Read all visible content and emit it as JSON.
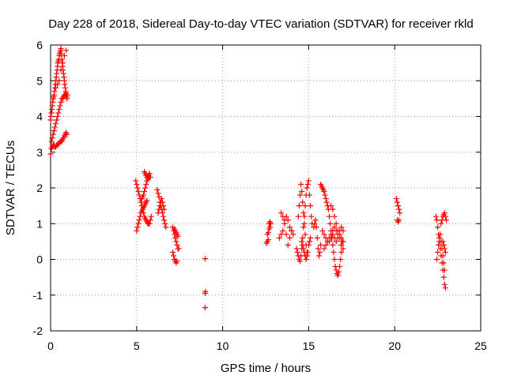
{
  "chart_data": {
    "type": "scatter",
    "title": "Day 228 of 2018, Sidereal Day-to-day VTEC variation (SDTVAR) for receiver rkld",
    "xlabel": "GPS time / hours",
    "ylabel": "SDTVAR / TECUs",
    "xlim": [
      0,
      25
    ],
    "ylim": [
      -2,
      6
    ],
    "xticks": [
      0,
      5,
      10,
      15,
      20,
      25
    ],
    "yticks": [
      -2,
      -1,
      0,
      1,
      2,
      3,
      4,
      5,
      6
    ],
    "grid": true,
    "marker": "+",
    "color": "#ff0000",
    "series": [
      {
        "name": "SDTVAR",
        "x": [
          0.0,
          0.02,
          0.05,
          0.08,
          0.1,
          0.12,
          0.15,
          0.18,
          0.2,
          0.22,
          0.25,
          0.28,
          0.3,
          0.33,
          0.35,
          0.38,
          0.4,
          0.42,
          0.45,
          0.48,
          0.5,
          0.52,
          0.55,
          0.58,
          0.6,
          0.62,
          0.65,
          0.68,
          0.7,
          0.72,
          0.75,
          0.78,
          0.8,
          0.82,
          0.85,
          0.88,
          0.9,
          0.92,
          0.95,
          0.97,
          0.05,
          0.1,
          0.15,
          0.2,
          0.25,
          0.3,
          0.35,
          0.4,
          0.45,
          0.5,
          0.55,
          0.6,
          0.65,
          0.7,
          0.75,
          0.8,
          0.85,
          0.9,
          0.0,
          0.05,
          0.1,
          0.15,
          0.2,
          0.25,
          0.3,
          0.35,
          0.4,
          0.45,
          0.5,
          0.55,
          0.6,
          0.65,
          0.7,
          0.75,
          0.8,
          0.85,
          0.9,
          0.95,
          0.3,
          0.4,
          0.5,
          0.6,
          0.7,
          0.8,
          0.9,
          4.95,
          5.0,
          5.05,
          5.1,
          5.15,
          5.2,
          5.25,
          5.3,
          5.35,
          5.4,
          5.45,
          5.5,
          5.55,
          5.6,
          5.65,
          5.7,
          5.75,
          5.8,
          5.85,
          5.0,
          5.05,
          5.1,
          5.15,
          5.2,
          5.25,
          5.3,
          5.35,
          5.4,
          5.45,
          5.5,
          5.55,
          5.6,
          5.3,
          5.35,
          5.4,
          5.45,
          5.5,
          5.55,
          5.6,
          5.65,
          5.7,
          5.75,
          5.45,
          5.5,
          5.55,
          5.6,
          5.65,
          5.7,
          5.75,
          5.8,
          6.2,
          6.25,
          6.3,
          6.35,
          6.4,
          6.45,
          6.5,
          6.55,
          6.6,
          6.65,
          6.7,
          6.25,
          6.3,
          6.35,
          6.4,
          6.45,
          6.5,
          6.55,
          6.6,
          7.1,
          7.15,
          7.2,
          7.25,
          7.3,
          7.35,
          7.4,
          7.45,
          7.1,
          7.15,
          7.2,
          7.25,
          7.3,
          7.35,
          7.2,
          7.25,
          7.3,
          7.35,
          7.4,
          8.98,
          8.98,
          8.98,
          9.0,
          12.55,
          12.6,
          12.65,
          12.7,
          12.75,
          12.8,
          12.6,
          12.65,
          12.7,
          12.75,
          13.3,
          13.4,
          13.5,
          13.6,
          13.7,
          13.8,
          13.9,
          14.0,
          14.1,
          13.4,
          13.5,
          13.6,
          13.7,
          13.8,
          13.9,
          14.0,
          14.3,
          14.35,
          14.4,
          14.45,
          14.5,
          14.55,
          14.6,
          14.65,
          14.7,
          14.75,
          14.8,
          14.85,
          14.9,
          14.95,
          15.0,
          15.05,
          15.1,
          15.15,
          15.2,
          14.4,
          14.45,
          14.5,
          14.55,
          14.6,
          14.65,
          14.7,
          14.75,
          14.8,
          14.85,
          14.9,
          14.6,
          14.65,
          14.7,
          14.75,
          14.8,
          14.85,
          14.9,
          14.95,
          15.0,
          15.05,
          15.1,
          15.3,
          15.35,
          15.4,
          15.45,
          15.5,
          15.55,
          15.6,
          15.65,
          15.7,
          15.7,
          15.75,
          15.8,
          15.85,
          15.9,
          15.95,
          16.0,
          16.05,
          16.1,
          16.15,
          16.2,
          16.25,
          16.3,
          16.35,
          16.4,
          16.45,
          16.5,
          16.55,
          16.6,
          16.65,
          16.7,
          16.75,
          16.8,
          16.85,
          16.9,
          16.95,
          17.0,
          15.8,
          15.9,
          16.0,
          16.1,
          16.2,
          16.3,
          16.4,
          16.5,
          16.6,
          16.7,
          16.8,
          16.9,
          17.0,
          15.9,
          16.0,
          16.1,
          16.2,
          16.3,
          16.4,
          16.5,
          16.6,
          16.7,
          16.8,
          16.9,
          16.3,
          16.4,
          16.5,
          16.6,
          16.7,
          16.8,
          16.9,
          17.0,
          20.1,
          20.15,
          20.2,
          20.25,
          20.3,
          20.15,
          20.2,
          20.25,
          22.4,
          22.45,
          22.5,
          22.55,
          22.6,
          22.65,
          22.7,
          22.75,
          22.8,
          22.85,
          22.9,
          22.95,
          22.45,
          22.5,
          22.55,
          22.6,
          22.65,
          22.7,
          22.75,
          22.8,
          22.85,
          22.9,
          22.7,
          22.75,
          22.8,
          22.85,
          22.9,
          22.95,
          23.0,
          22.8,
          22.85,
          22.9,
          22.95
        ],
        "y": [
          3.9,
          4.0,
          4.1,
          4.2,
          4.3,
          4.4,
          4.5,
          4.55,
          4.6,
          4.7,
          4.8,
          4.9,
          5.0,
          5.1,
          5.2,
          5.3,
          5.4,
          5.5,
          5.55,
          5.6,
          5.7,
          5.75,
          5.8,
          5.85,
          5.9,
          5.75,
          5.6,
          5.5,
          5.4,
          5.3,
          5.2,
          5.1,
          5.0,
          4.9,
          4.8,
          4.7,
          4.6,
          4.55,
          4.5,
          4.6,
          3.3,
          3.4,
          3.5,
          3.6,
          3.7,
          3.8,
          3.9,
          4.0,
          4.1,
          4.2,
          4.3,
          4.4,
          4.5,
          4.5,
          4.55,
          4.6,
          4.6,
          4.65,
          2.95,
          3.1,
          3.15,
          3.2,
          3.2,
          3.15,
          3.15,
          3.2,
          3.2,
          3.25,
          3.25,
          3.3,
          3.3,
          3.3,
          3.35,
          3.4,
          3.45,
          3.5,
          3.55,
          3.5,
          4.8,
          4.9,
          5.0,
          5.3,
          5.5,
          5.7,
          5.85,
          2.2,
          2.1,
          2.0,
          1.9,
          1.8,
          1.7,
          1.6,
          1.5,
          1.4,
          1.3,
          1.2,
          1.15,
          1.1,
          1.05,
          1.0,
          1.0,
          1.0,
          1.1,
          1.2,
          0.8,
          0.9,
          1.0,
          1.1,
          1.2,
          1.3,
          1.35,
          1.4,
          1.45,
          1.5,
          1.55,
          1.6,
          1.65,
          1.7,
          1.75,
          1.8,
          1.9,
          2.0,
          2.1,
          2.2,
          2.3,
          2.35,
          2.4,
          2.45,
          2.4,
          2.35,
          2.3,
          2.25,
          2.3,
          2.3,
          2.3,
          1.95,
          1.85,
          1.75,
          1.6,
          1.5,
          1.4,
          1.3,
          1.2,
          1.1,
          1.0,
          0.9,
          1.3,
          1.4,
          1.5,
          1.6,
          1.7,
          1.6,
          1.5,
          1.4,
          0.9,
          0.8,
          0.7,
          0.6,
          0.5,
          0.4,
          0.3,
          0.3,
          0.2,
          0.1,
          0.0,
          -0.05,
          -0.1,
          -0.05,
          0.85,
          0.8,
          0.75,
          0.7,
          0.65,
          0.02,
          -0.95,
          -1.35,
          -0.9,
          0.45,
          0.5,
          0.55,
          1.0,
          1.05,
          1.0,
          0.7,
          0.75,
          0.85,
          0.9,
          0.6,
          0.7,
          0.8,
          1.0,
          1.2,
          1.1,
          0.9,
          0.8,
          0.7,
          1.3,
          1.2,
          1.1,
          0.7,
          0.4,
          0.6,
          0.8,
          0.3,
          0.2,
          0.1,
          0.0,
          -0.05,
          0.1,
          0.3,
          0.6,
          0.9,
          1.2,
          1.5,
          1.8,
          2.0,
          2.1,
          2.2,
          1.8,
          1.5,
          1.2,
          1.0,
          1.2,
          1.5,
          1.8,
          2.1,
          1.9,
          1.6,
          1.3,
          1.0,
          0.7,
          0.4,
          0.2,
          0.5,
          0.4,
          0.3,
          0.2,
          0.1,
          0.0,
          0.1,
          0.2,
          0.4,
          0.5,
          0.6,
          0.9,
          1.0,
          1.1,
          0.9,
          0.6,
          0.3,
          0.1,
          0.2,
          0.4,
          2.1,
          2.05,
          2.0,
          1.95,
          1.9,
          1.8,
          1.7,
          1.6,
          1.5,
          1.4,
          1.2,
          1.0,
          0.8,
          0.6,
          0.4,
          0.2,
          0.0,
          -0.2,
          -0.3,
          -0.4,
          -0.45,
          -0.35,
          -0.2,
          0.0,
          0.2,
          0.5,
          0.8,
          0.8,
          0.7,
          0.6,
          0.5,
          0.5,
          0.6,
          0.7,
          0.6,
          0.5,
          0.6,
          0.7,
          0.6,
          0.5,
          0.3,
          0.4,
          0.5,
          0.6,
          0.7,
          0.8,
          0.9,
          0.8,
          0.7,
          0.8,
          0.9,
          1.5,
          1.4,
          1.2,
          1.0,
          0.8,
          0.6,
          0.4,
          0.3,
          1.7,
          1.6,
          1.5,
          1.4,
          1.3,
          1.1,
          1.05,
          1.1,
          1.2,
          1.1,
          0.9,
          0.7,
          0.5,
          0.3,
          0.1,
          -0.1,
          -0.3,
          -0.5,
          -0.7,
          -0.8,
          0.0,
          0.2,
          0.4,
          0.6,
          0.7,
          0.5,
          0.3,
          0.1,
          -0.1,
          -0.3,
          1.0,
          1.1,
          1.2,
          1.25,
          1.3,
          1.2,
          1.1,
          0.5,
          0.4,
          0.3,
          0.2
        ]
      }
    ]
  }
}
